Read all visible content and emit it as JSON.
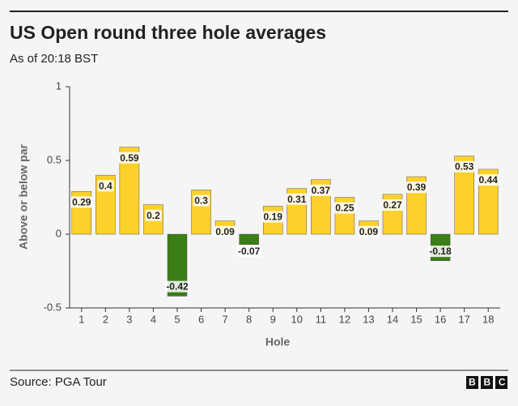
{
  "chart_data": {
    "type": "bar",
    "title": "US Open round three hole averages",
    "subtitle": "As of 20:18 BST",
    "x_label": "Hole",
    "y_label": "Above or below par",
    "categories": [
      "1",
      "2",
      "3",
      "4",
      "5",
      "6",
      "7",
      "8",
      "9",
      "10",
      "11",
      "12",
      "13",
      "14",
      "15",
      "16",
      "17",
      "18"
    ],
    "values": [
      0.29,
      0.4,
      0.59,
      0.2,
      -0.42,
      0.3,
      0.09,
      -0.07,
      0.19,
      0.31,
      0.37,
      0.25,
      0.09,
      0.27,
      0.39,
      -0.18,
      0.53,
      0.44
    ],
    "color": "#fdd12b",
    "negative_color": "#3b7d17",
    "ylim": [
      -0.5,
      1
    ],
    "yticks": [
      -0.5,
      0,
      0.5,
      1
    ],
    "grid": false,
    "source": "Source: PGA Tour",
    "logo": "BBC"
  }
}
